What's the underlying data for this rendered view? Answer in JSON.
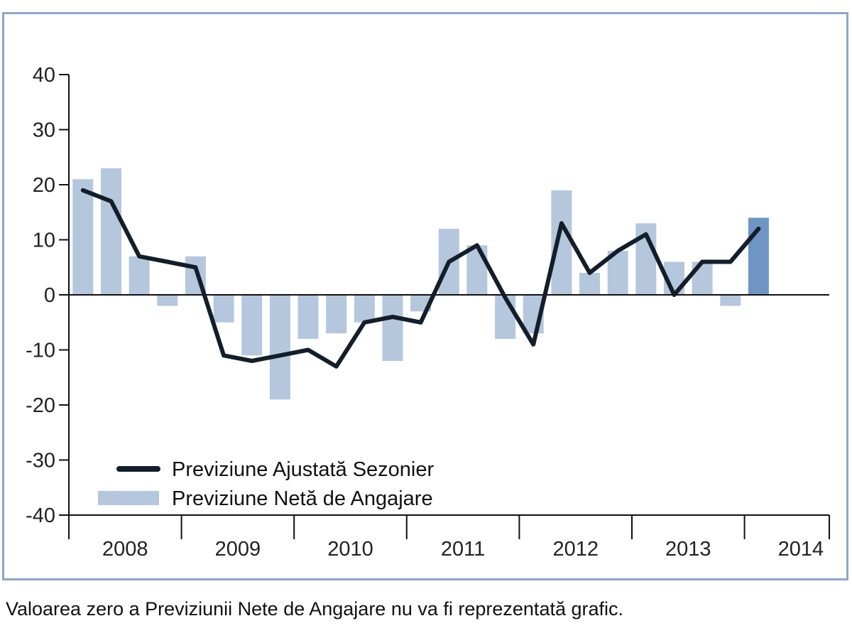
{
  "chart_data": {
    "type": "bar",
    "title": "",
    "xlabel": "",
    "ylabel": "",
    "ylim": [
      -40,
      40
    ],
    "yticks": [
      40,
      30,
      20,
      10,
      0,
      -10,
      -20,
      -30,
      -40
    ],
    "year_labels": [
      "2008",
      "2009",
      "2010",
      "2011",
      "2012",
      "2013",
      "2014"
    ],
    "quarters": [
      "2008 Q1",
      "2008 Q2",
      "2008 Q3",
      "2008 Q4",
      "2009 Q1",
      "2009 Q2",
      "2009 Q3",
      "2009 Q4",
      "2010 Q1",
      "2010 Q2",
      "2010 Q3",
      "2010 Q4",
      "2011 Q1",
      "2011 Q2",
      "2011 Q3",
      "2011 Q4",
      "2012 Q1",
      "2012 Q2",
      "2012 Q3",
      "2012 Q4",
      "2013 Q1",
      "2013 Q2",
      "2013 Q3",
      "2013 Q4",
      "2014 Q1",
      "2014 Q2",
      "2014 Q3"
    ],
    "series": [
      {
        "name": "Previziune Netă de Angajare",
        "type": "bar",
        "color": "#b5c7dd",
        "highlight_color": "#6e95c3",
        "values": [
          21,
          23,
          7,
          -2,
          7,
          -5,
          -11,
          -19,
          -8,
          -7,
          -5,
          -12,
          -3,
          12,
          9,
          -8,
          -7,
          19,
          4,
          8,
          13,
          6,
          6,
          -2,
          14,
          null,
          null
        ]
      },
      {
        "name": "Previziune Ajustată Sezonier",
        "type": "line",
        "color": "#141e2b",
        "values": [
          19,
          17,
          7,
          6,
          5,
          -11,
          -12,
          -11,
          -10,
          -13,
          -5,
          -4,
          -5,
          6,
          9,
          -0.5,
          -9,
          13,
          4,
          8,
          11,
          0,
          6,
          6,
          12,
          null,
          null
        ]
      }
    ],
    "legend_position": "bottom-left",
    "grid": false
  },
  "footnote": "Valoarea zero a Previziunii Nete de Angajare nu va fi reprezentată grafic."
}
